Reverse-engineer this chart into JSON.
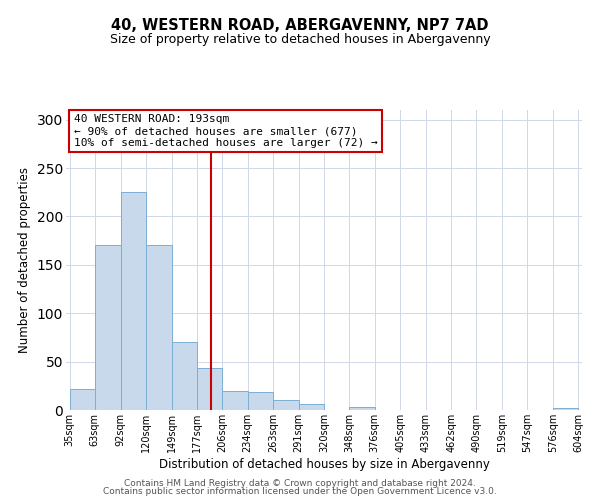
{
  "title": "40, WESTERN ROAD, ABERGAVENNY, NP7 7AD",
  "subtitle": "Size of property relative to detached houses in Abergavenny",
  "xlabel": "Distribution of detached houses by size in Abergavenny",
  "ylabel": "Number of detached properties",
  "bar_edges": [
    35,
    63,
    92,
    120,
    149,
    177,
    206,
    234,
    263,
    291,
    320,
    348,
    376,
    405,
    433,
    462,
    490,
    519,
    547,
    576,
    604
  ],
  "bar_heights": [
    22,
    170,
    225,
    170,
    70,
    43,
    20,
    19,
    10,
    6,
    0,
    3,
    0,
    0,
    0,
    0,
    0,
    0,
    0,
    2
  ],
  "bar_color": "#c9d9ec",
  "bar_edgecolor": "#7bafd4",
  "vline_x": 193,
  "vline_color": "#cc0000",
  "annotation_line1": "40 WESTERN ROAD: 193sqm",
  "annotation_line2": "← 90% of detached houses are smaller (677)",
  "annotation_line3": "10% of semi-detached houses are larger (72) →",
  "annotation_box_edgecolor": "#cc0000",
  "annotation_box_facecolor": "#ffffff",
  "ylim": [
    0,
    310
  ],
  "tick_labels": [
    "35sqm",
    "63sqm",
    "92sqm",
    "120sqm",
    "149sqm",
    "177sqm",
    "206sqm",
    "234sqm",
    "263sqm",
    "291sqm",
    "320sqm",
    "348sqm",
    "376sqm",
    "405sqm",
    "433sqm",
    "462sqm",
    "490sqm",
    "519sqm",
    "547sqm",
    "576sqm",
    "604sqm"
  ],
  "footer_line1": "Contains HM Land Registry data © Crown copyright and database right 2024.",
  "footer_line2": "Contains public sector information licensed under the Open Government Licence v3.0.",
  "bg_color": "#ffffff",
  "grid_color": "#d0d8e8",
  "title_fontsize": 10.5,
  "subtitle_fontsize": 9,
  "axis_label_fontsize": 8.5,
  "tick_fontsize": 7,
  "annotation_fontsize": 8,
  "footer_fontsize": 6.5
}
